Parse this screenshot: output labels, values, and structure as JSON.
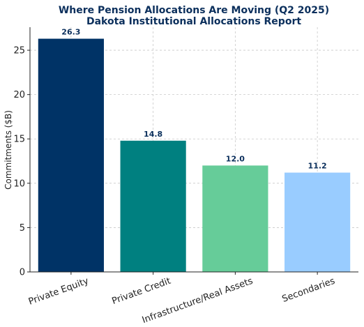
{
  "chart_data": {
    "type": "bar",
    "title": "Where Pension Allocations Are Moving (Q2 2025)",
    "subtitle": "Dakota Institutional Allocations Report",
    "xlabel": "",
    "ylabel": "Commitments ($B)",
    "categories": [
      "Private Equity",
      "Private Credit",
      "Infrastructure/Real Assets",
      "Secondaries"
    ],
    "values": [
      26.3,
      14.8,
      12.0,
      11.2
    ],
    "data_labels": [
      "26.3",
      "14.8",
      "12.0",
      "11.2"
    ],
    "colors": [
      "#003366",
      "#008080",
      "#66cc99",
      "#99ccff"
    ],
    "label_color": "#0b2f5c",
    "ylim": [
      0,
      27.6
    ],
    "yticks": [
      0,
      5,
      10,
      15,
      20,
      25
    ],
    "grid": true,
    "legend": "none"
  }
}
